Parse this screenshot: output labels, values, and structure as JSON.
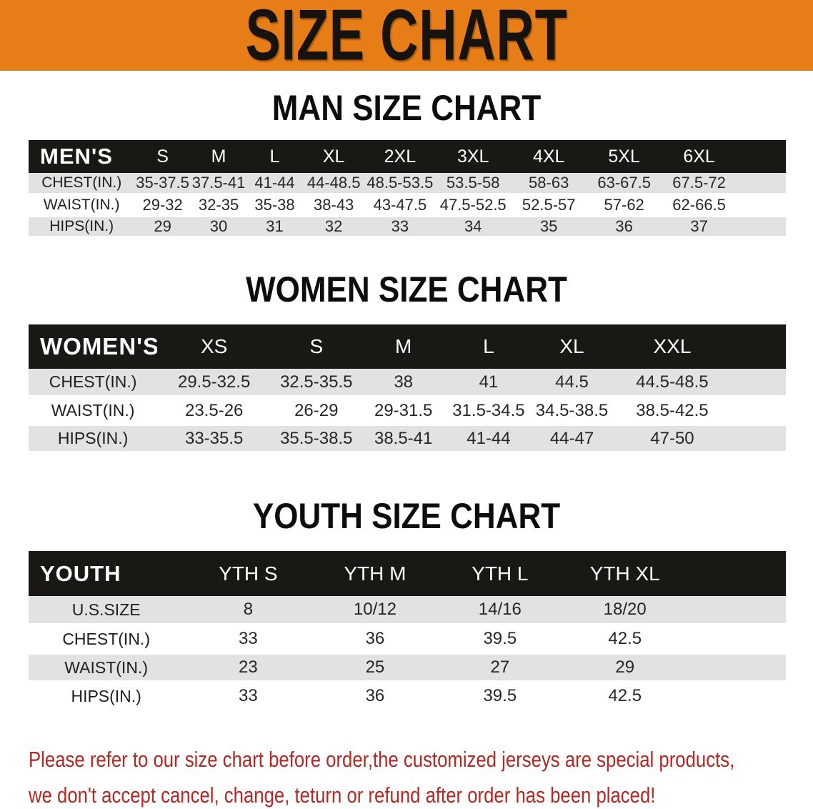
{
  "banner": {
    "title": "SIZE CHART"
  },
  "colors": {
    "banner_bg": "#E67D17",
    "banner_text": "#16130E",
    "header_band": "#1A1815",
    "header_text": "#FFFFFF",
    "row_gray": "#E2E2E2",
    "note_text": "#B22823"
  },
  "sections": [
    {
      "heading": "MAN SIZE CHART",
      "table": {
        "title": "MEN'S",
        "header": [
          "MEN'S",
          "S",
          "M",
          "L",
          "XL",
          "2XL",
          "3XL",
          "4XL",
          "5XL",
          "6XL"
        ],
        "rows": [
          {
            "label": "CHEST(IN.)",
            "values": [
              "35-37.5",
              "37.5-41",
              "41-44",
              "44-48.5",
              "48.5-53.5",
              "53.5-58",
              "58-63",
              "63-67.5",
              "67.5-72"
            ]
          },
          {
            "label": "WAIST(IN.)",
            "values": [
              "29-32",
              "32-35",
              "35-38",
              "38-43",
              "43-47.5",
              "47.5-52.5",
              "52.5-57",
              "57-62",
              "62-66.5"
            ]
          },
          {
            "label": "HIPS(IN.)",
            "values": [
              "29",
              "30",
              "31",
              "32",
              "33",
              "34",
              "35",
              "36",
              "37"
            ]
          }
        ]
      }
    },
    {
      "heading": "WOMEN SIZE CHART",
      "table": {
        "title": "WOMEN'S",
        "header": [
          "WOMEN'S",
          "XS",
          "S",
          "M",
          "L",
          "XL",
          "XXL"
        ],
        "rows": [
          {
            "label": "CHEST(IN.)",
            "values": [
              "29.5-32.5",
              "32.5-35.5",
              "38",
              "41",
              "44.5",
              "44.5-48.5"
            ]
          },
          {
            "label": "WAIST(IN.)",
            "values": [
              "23.5-26",
              "26-29",
              "29-31.5",
              "31.5-34.5",
              "34.5-38.5",
              "38.5-42.5"
            ]
          },
          {
            "label": "HIPS(IN.)",
            "values": [
              "33-35.5",
              "35.5-38.5",
              "38.5-41",
              "41-44",
              "44-47",
              "47-50"
            ]
          }
        ]
      }
    },
    {
      "heading": "YOUTH SIZE CHART",
      "table": {
        "title": "YOUTH",
        "header": [
          "YOUTH",
          "YTH S",
          "YTH M",
          "YTH L",
          "YTH XL"
        ],
        "rows": [
          {
            "label": "U.S.SIZE",
            "values": [
              "8",
              "10/12",
              "14/16",
              "18/20"
            ]
          },
          {
            "label": "CHEST(IN.)",
            "values": [
              "33",
              "36",
              "39.5",
              "42.5"
            ]
          },
          {
            "label": "WAIST(IN.)",
            "values": [
              "23",
              "25",
              "27",
              "29"
            ]
          },
          {
            "label": "HIPS(IN.)",
            "values": [
              "33",
              "36",
              "39.5",
              "42.5"
            ]
          }
        ]
      }
    }
  ],
  "note": {
    "line1": "Please refer to our size chart before order,the customized jerseys are special products,",
    "line2": "we don't accept cancel, change, teturn or refund after order has been placed!"
  }
}
